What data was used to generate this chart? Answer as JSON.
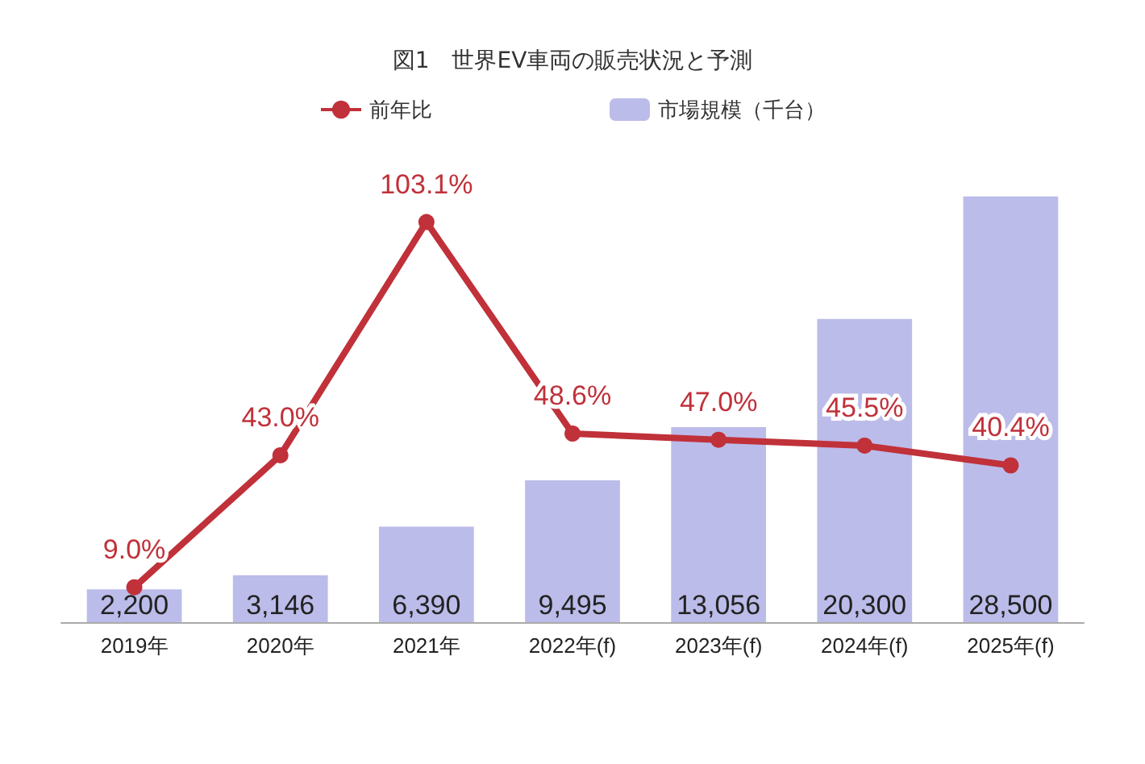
{
  "chart_data": {
    "type": "bar",
    "title": "図1　世界EV車両の販売状況と予測",
    "categories": [
      "2019年",
      "2020年",
      "2021年",
      "2022年(f)",
      "2023年(f)",
      "2024年(f)",
      "2025年(f)"
    ],
    "series": [
      {
        "type": "line",
        "name": "前年比",
        "color": "#c0313a",
        "axis": "y2",
        "marker": "circle",
        "value_labels": [
          "9.0%",
          "43.0%",
          "103.1%",
          "48.6%",
          "47.0%",
          "45.5%",
          "40.4%"
        ],
        "values": [
          9.0,
          43.0,
          103.1,
          48.6,
          47.0,
          45.5,
          40.4
        ]
      },
      {
        "name": "市場規模（千台）",
        "color": "#bcbcea",
        "value_labels": [
          "2,200",
          "3,146",
          "6,390",
          "9,495",
          "13,056",
          "20,300",
          "28,500"
        ],
        "values": [
          2200,
          3146,
          6390,
          9495,
          13056,
          20300,
          28500
        ]
      }
    ],
    "tick_labels": "x",
    "legend": "top"
  }
}
